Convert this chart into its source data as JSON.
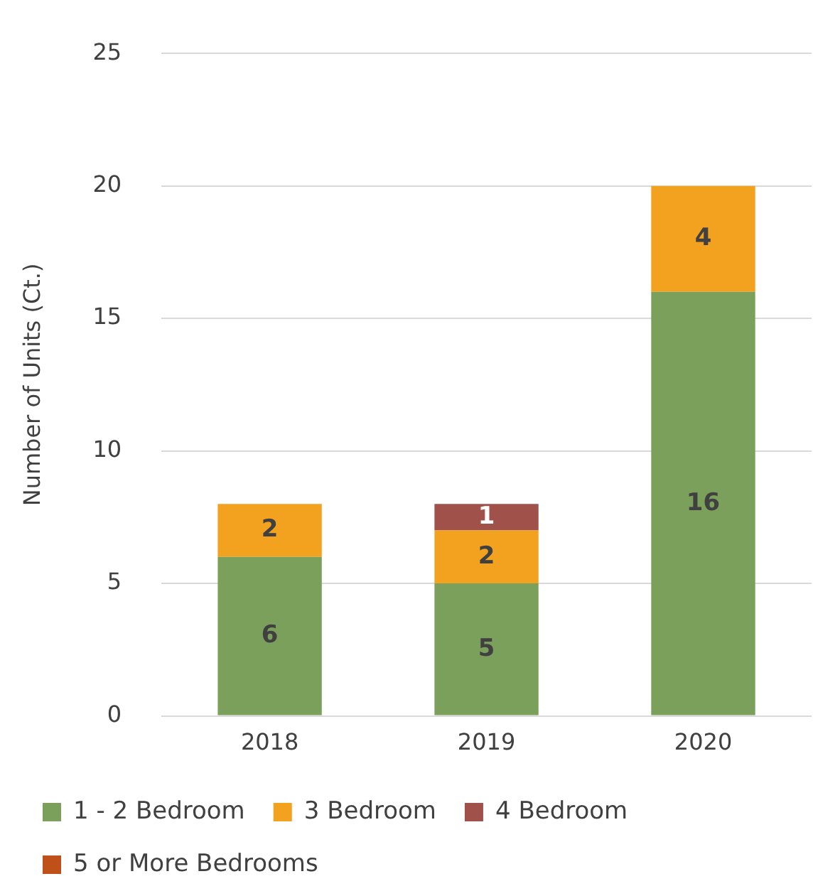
{
  "chart_data": {
    "type": "bar",
    "stacked": true,
    "ylabel": "Number of Units (Ct.)",
    "categories": [
      "2018",
      "2019",
      "2020"
    ],
    "series": [
      {
        "name": "1 - 2 Bedroom",
        "color": "#7ba05b",
        "values": [
          6,
          5,
          16
        ],
        "value_labels": [
          "6",
          "5",
          "16"
        ]
      },
      {
        "name": "3 Bedroom",
        "color": "#f2a21f",
        "values": [
          2,
          2,
          4
        ],
        "value_labels": [
          "2",
          "2",
          "4"
        ]
      },
      {
        "name": "4 Bedroom",
        "color": "#a0524a",
        "values": [
          0,
          1,
          0
        ],
        "value_labels": [
          null,
          "1",
          null
        ]
      },
      {
        "name": "5 or More Bedrooms",
        "color": "#c0501a",
        "values": [
          0,
          0,
          0
        ],
        "value_labels": [
          null,
          null,
          null
        ]
      }
    ],
    "ylim": [
      0,
      25
    ],
    "yticks": [
      0,
      5,
      10,
      15,
      20,
      25
    ],
    "grid": "y",
    "legend": "bottom"
  }
}
